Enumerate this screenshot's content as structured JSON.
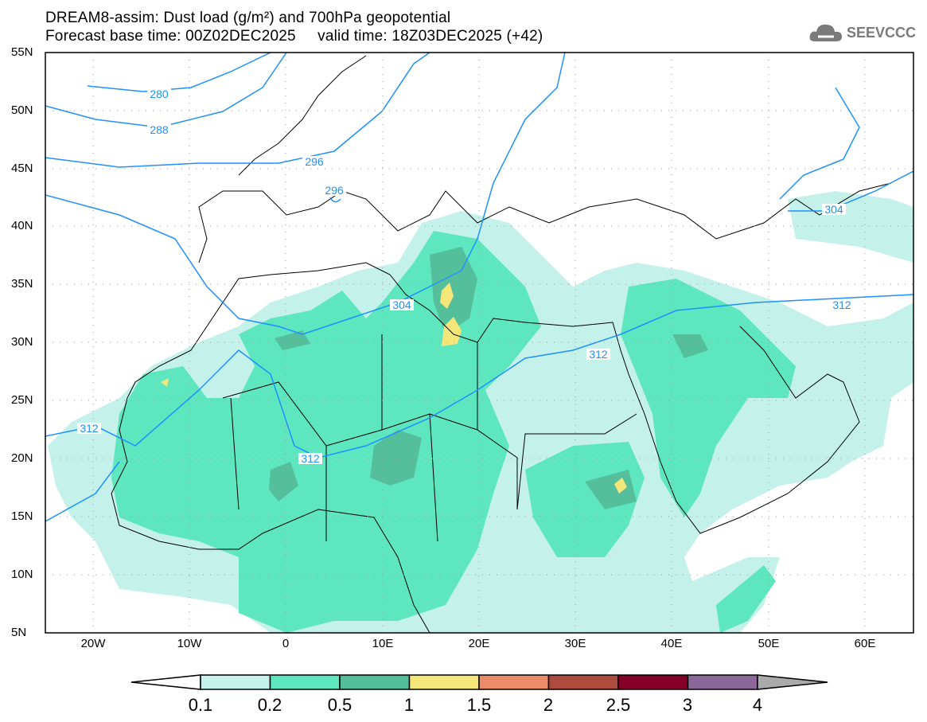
{
  "title": {
    "line1": "DREAM8-assim: Dust load (g/m²) and 700hPa geopotential",
    "line2": "Forecast base time: 00Z02DEC2025     valid time: 18Z03DEC2025 (+42)"
  },
  "logo": {
    "text": "SEEVCCC",
    "icon": "cloud-icon"
  },
  "map": {
    "lat_labels": [
      "55N",
      "50N",
      "45N",
      "40N",
      "35N",
      "30N",
      "25N",
      "20N",
      "15N",
      "10N",
      "5N"
    ],
    "lon_labels": [
      "20W",
      "10W",
      "0",
      "10E",
      "20E",
      "30E",
      "40E",
      "50E",
      "60E"
    ],
    "contour_labels": [
      "280",
      "288",
      "296",
      "296",
      "304",
      "304",
      "312",
      "312",
      "312",
      "312"
    ],
    "contour_color": "#1e90ff"
  },
  "colorbar": {
    "labels": [
      "0.1",
      "0.2",
      "0.5",
      "1",
      "1.5",
      "2",
      "2.5",
      "3",
      "4"
    ],
    "colors": [
      "#c4f2ea",
      "#5ee6bf",
      "#55bf9c",
      "#f5e67a",
      "#eb8b6a",
      "#ad4b3f",
      "#840029",
      "#8c6799"
    ],
    "over_color": "#aaaaaa",
    "under_color": "#ffffff"
  }
}
